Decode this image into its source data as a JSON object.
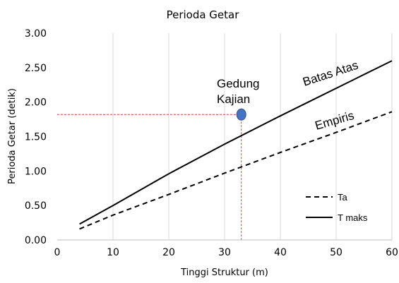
{
  "chart_data": {
    "type": "line",
    "title": "Perioda Getar",
    "xlabel": "Tinggi Struktur (m)",
    "ylabel": "Perioda Getar (detik)",
    "xlim": [
      0,
      60
    ],
    "ylim": [
      0,
      3
    ],
    "x_ticks": [
      0,
      10,
      20,
      30,
      40,
      50,
      60
    ],
    "x_tick_labels": [
      "0",
      "10",
      "20",
      "30",
      "40",
      "50",
      "60"
    ],
    "y_ticks": [
      0,
      0.5,
      1,
      1.5,
      2,
      2.5,
      3
    ],
    "y_tick_labels": [
      "0.00",
      "0.50",
      "1.00",
      "1.50",
      "2.00",
      "2.50",
      "3.00"
    ],
    "grid": "vertical",
    "legend_position": "bottom-right",
    "series": [
      {
        "name": "Ta",
        "style": "dashed",
        "color": "#000000",
        "x": [
          4,
          10,
          20,
          30,
          40,
          50,
          60
        ],
        "y": [
          0.16,
          0.36,
          0.66,
          0.97,
          1.27,
          1.56,
          1.86
        ]
      },
      {
        "name": "T maks",
        "style": "solid",
        "color": "#000000",
        "x": [
          4,
          10,
          20,
          30,
          40,
          50,
          60
        ],
        "y": [
          0.23,
          0.5,
          0.96,
          1.39,
          1.8,
          2.2,
          2.6
        ]
      }
    ],
    "point": {
      "label_lines": [
        "Gedung",
        "Kajian"
      ],
      "x": 33,
      "y": 1.82,
      "color": "#4472c4"
    },
    "reference_line_color": "#e03c31",
    "annotations": [
      {
        "text": "Batas Atas",
        "x": 54,
        "y": 2.5
      },
      {
        "text": "Empiris",
        "x": 50,
        "y": 1.8
      }
    ]
  }
}
